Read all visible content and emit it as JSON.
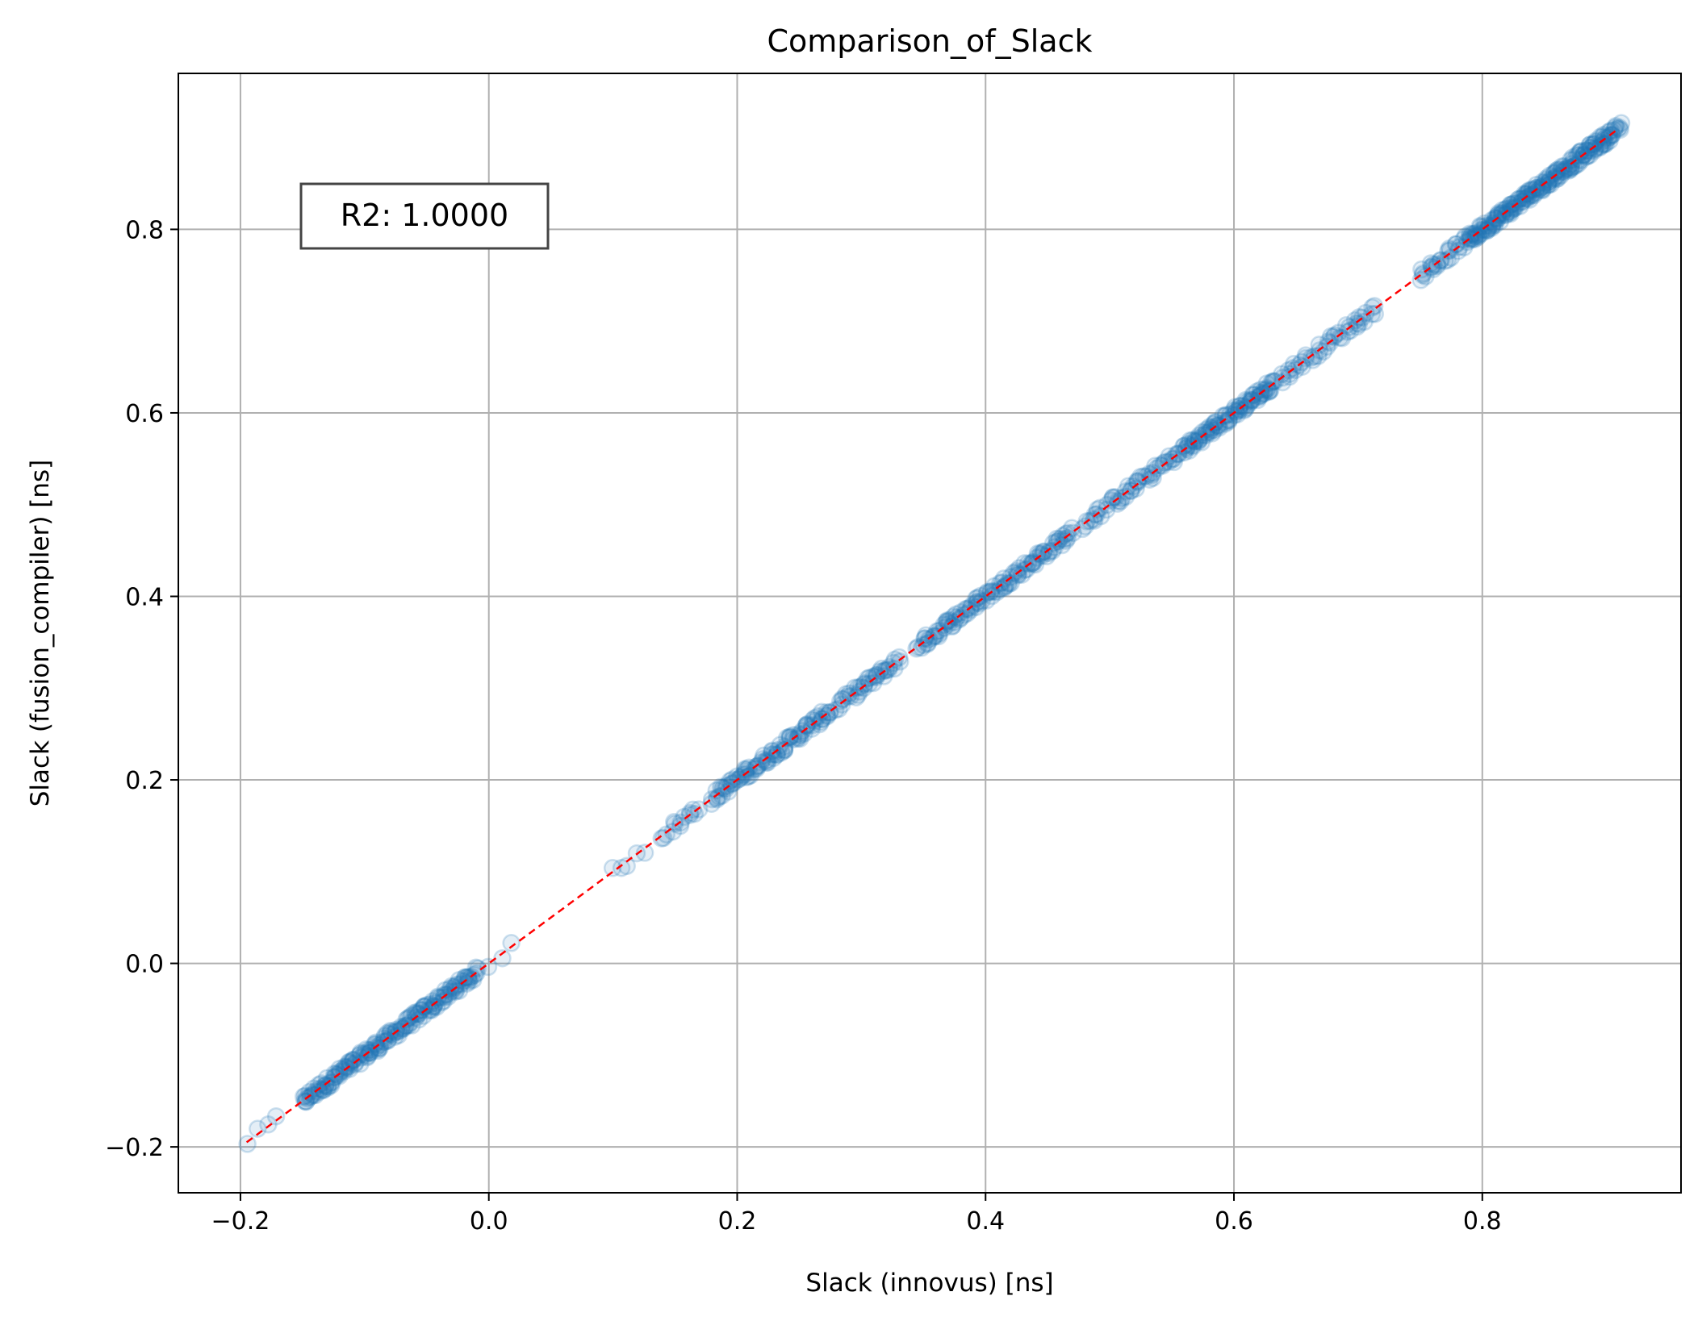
{
  "chart_data": {
    "type": "scatter",
    "title": "Comparison_of_Slack",
    "xlabel": "Slack (innovus) [ns]",
    "ylabel": "Slack (fusion_compiler) [ns]",
    "xlim": [
      -0.25,
      0.96
    ],
    "ylim": [
      -0.25,
      0.97
    ],
    "xticks": [
      -0.2,
      0.0,
      0.2,
      0.4,
      0.6,
      0.8
    ],
    "yticks": [
      -0.2,
      0.0,
      0.2,
      0.4,
      0.6,
      0.8
    ],
    "xtick_labels": [
      "−0.2",
      "0.0",
      "0.2",
      "0.4",
      "0.6",
      "0.8"
    ],
    "ytick_labels": [
      "−0.2",
      "0.0",
      "0.2",
      "0.4",
      "0.6",
      "0.8"
    ],
    "grid": true,
    "marker_color": "#1f77b4",
    "reference_line": {
      "style": "dashed",
      "color": "#ff0000",
      "from": [
        -0.195,
        -0.195
      ],
      "to": [
        0.91,
        0.91
      ]
    },
    "annotation": "R2: 1.0000",
    "clusters": [
      {
        "x_start": -0.195,
        "x_end": -0.17,
        "count": 4
      },
      {
        "x_start": -0.15,
        "x_end": -0.01,
        "count": 170
      },
      {
        "x_start": 0.0,
        "x_end": 0.02,
        "count": 3
      },
      {
        "x_start": 0.1,
        "x_end": 0.125,
        "count": 5
      },
      {
        "x_start": 0.14,
        "x_end": 0.17,
        "count": 14
      },
      {
        "x_start": 0.18,
        "x_end": 0.275,
        "count": 90
      },
      {
        "x_start": 0.28,
        "x_end": 0.33,
        "count": 40
      },
      {
        "x_start": 0.345,
        "x_end": 0.47,
        "count": 110
      },
      {
        "x_start": 0.48,
        "x_end": 0.56,
        "count": 55
      },
      {
        "x_start": 0.56,
        "x_end": 0.63,
        "count": 85
      },
      {
        "x_start": 0.63,
        "x_end": 0.715,
        "count": 50
      },
      {
        "x_start": 0.75,
        "x_end": 0.79,
        "count": 30
      },
      {
        "x_start": 0.79,
        "x_end": 0.91,
        "count": 190
      }
    ]
  }
}
